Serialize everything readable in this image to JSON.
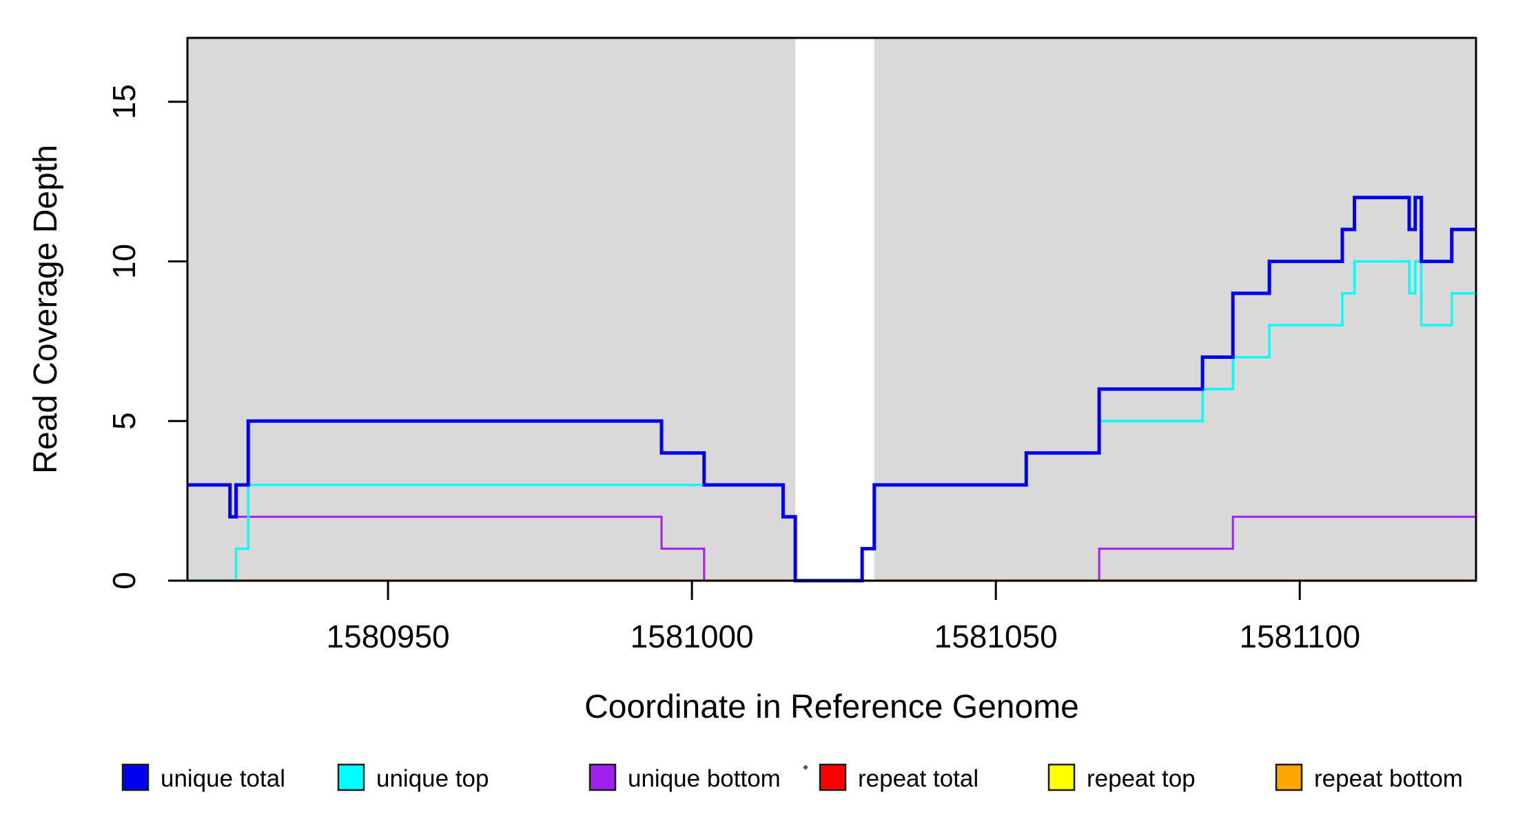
{
  "figure": {
    "x_axis_label": "Coordinate in Reference Genome",
    "y_axis_label": "Read Coverage Depth"
  },
  "colors": {
    "panel_background": "#d9d9d9",
    "gap_background": "#ffffff",
    "axis": "#000000",
    "legend_swatch_border": "#1a1a1a"
  },
  "legend": {
    "items": [
      {
        "label": "unique total",
        "color": "#0000f0"
      },
      {
        "label": "unique top",
        "color": "#00ffff"
      },
      {
        "label": "unique bottom",
        "color": "#a020f0"
      },
      {
        "label": "repeat total",
        "color": "#ff0000"
      },
      {
        "label": "repeat top",
        "color": "#ffff00"
      },
      {
        "label": "repeat bottom",
        "color": "#ffa500"
      }
    ]
  },
  "chart_data": {
    "type": "line",
    "subtype": "step",
    "title": "",
    "xlabel": "Coordinate in Reference Genome",
    "ylabel": "Read Coverage Depth",
    "x_domain": [
      1580917,
      1581129
    ],
    "ylim": [
      0,
      17
    ],
    "x_ticks": [
      1580950,
      1581000,
      1581050,
      1581100
    ],
    "x_tick_labels": [
      "1580950",
      "1581000",
      "1581050",
      "1581100"
    ],
    "y_ticks": [
      0,
      5,
      10,
      15
    ],
    "y_tick_labels": [
      "0",
      "5",
      "10",
      "15"
    ],
    "grid": false,
    "legend_position": "bottom",
    "shaded_regions": [
      {
        "x0": 1580917,
        "x1": 1581017,
        "note": "gray panel"
      },
      {
        "x0": 1581030,
        "x1": 1581129,
        "note": "gray panel"
      }
    ],
    "gap_region": {
      "x0": 1581017,
      "x1": 1581030,
      "note": "white gap, coverage 0"
    },
    "series": [
      {
        "name": "unique total",
        "color": "#0000f0",
        "width": 5,
        "breakpoints": [
          [
            1580917,
            3
          ],
          [
            1580924,
            2
          ],
          [
            1580925,
            3
          ],
          [
            1580927,
            5
          ],
          [
            1580995,
            4
          ],
          [
            1581002,
            3
          ],
          [
            1581015,
            2
          ],
          [
            1581017,
            0
          ],
          [
            1581028,
            1
          ],
          [
            1581030,
            3
          ],
          [
            1581055,
            4
          ],
          [
            1581067,
            6
          ],
          [
            1581084,
            7
          ],
          [
            1581089,
            9
          ],
          [
            1581095,
            10
          ],
          [
            1581107,
            11
          ],
          [
            1581109,
            12
          ],
          [
            1581118,
            11
          ],
          [
            1581119,
            12
          ],
          [
            1581120,
            10
          ],
          [
            1581125,
            11
          ]
        ],
        "x_end": 1581129
      },
      {
        "name": "unique top",
        "color": "#00ffff",
        "width": 3.5,
        "breakpoints": [
          [
            1580917,
            0
          ],
          [
            1580925,
            1
          ],
          [
            1580927,
            3
          ],
          [
            1581015,
            2
          ],
          [
            1581017,
            0
          ],
          [
            1581028,
            1
          ],
          [
            1581030,
            3
          ],
          [
            1581055,
            4
          ],
          [
            1581067,
            5
          ],
          [
            1581084,
            6
          ],
          [
            1581089,
            7
          ],
          [
            1581095,
            8
          ],
          [
            1581107,
            9
          ],
          [
            1581109,
            10
          ],
          [
            1581118,
            9
          ],
          [
            1581119,
            10
          ],
          [
            1581120,
            8
          ],
          [
            1581125,
            9
          ]
        ],
        "x_end": 1581129
      },
      {
        "name": "unique bottom",
        "color": "#a020f0",
        "width": 3,
        "breakpoints": [
          [
            1580917,
            3
          ],
          [
            1580924,
            2
          ],
          [
            1580995,
            1
          ],
          [
            1581002,
            0
          ],
          [
            1581067,
            1
          ],
          [
            1581089,
            2
          ]
        ],
        "x_end": 1581129
      },
      {
        "name": "repeat total",
        "color": "#ff0000",
        "width": 3,
        "breakpoints": [
          [
            1580917,
            0
          ]
        ],
        "x_end": 1581129
      },
      {
        "name": "repeat top",
        "color": "#ffff00",
        "width": 3,
        "breakpoints": [
          [
            1580917,
            0
          ]
        ],
        "x_end": 1581129
      },
      {
        "name": "repeat bottom",
        "color": "#ffa500",
        "width": 3.5,
        "breakpoints": [
          [
            1580917,
            0
          ]
        ],
        "x_end": 1581129
      }
    ]
  }
}
